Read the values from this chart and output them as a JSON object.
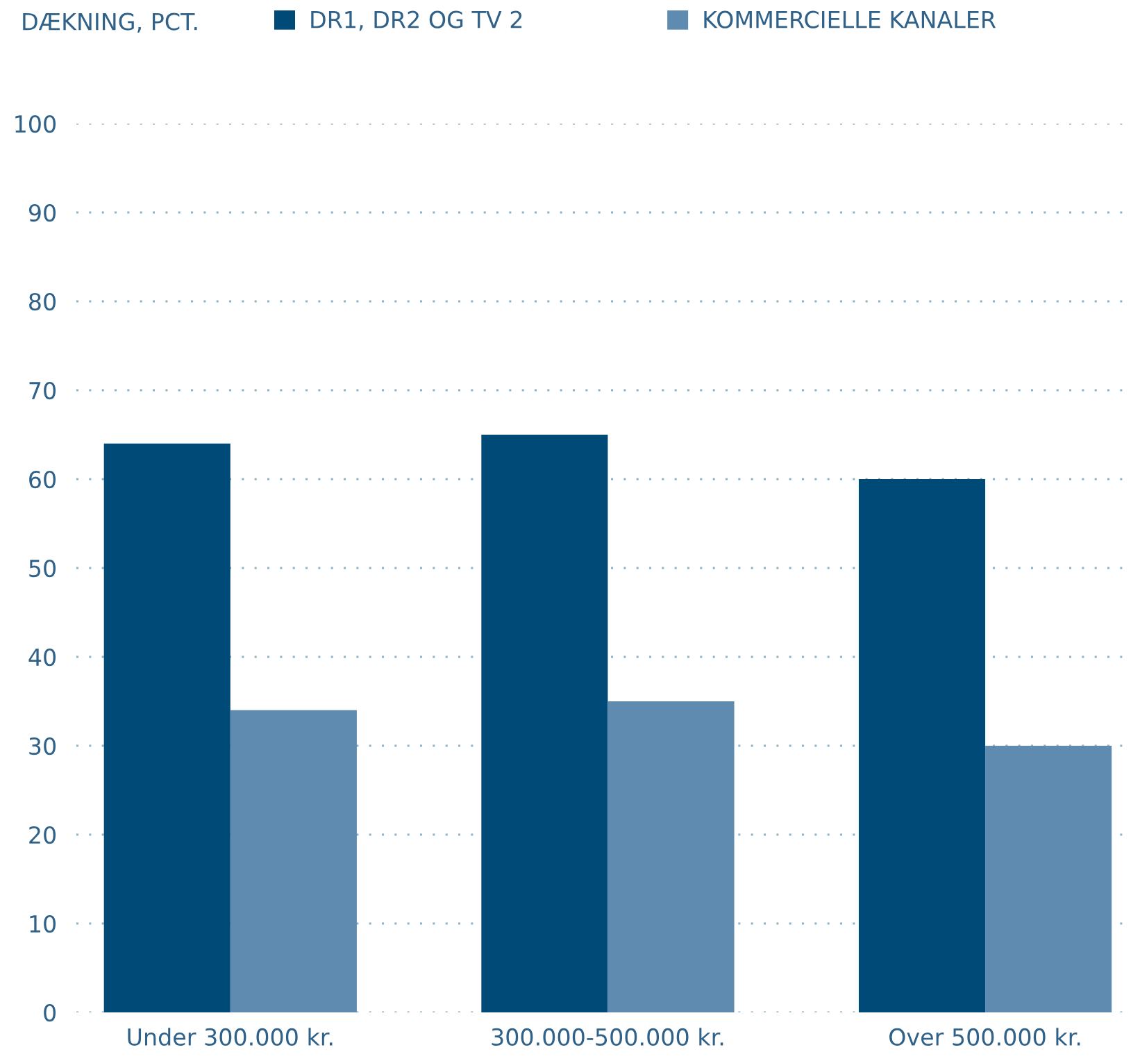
{
  "chart_data": {
    "type": "bar",
    "ylabel": "DÆKNING, PCT.",
    "categories": [
      "Under 300.000 kr.",
      "300.000-500.000 kr.",
      "Over 500.000 kr."
    ],
    "series": [
      {
        "name": "DR1, DR2 OG TV 2",
        "color": "#004a77",
        "values": [
          64,
          65,
          60
        ]
      },
      {
        "name": "KOMMERCIELLE KANALER",
        "color": "#5f8bb1",
        "values": [
          34,
          35,
          30
        ]
      }
    ],
    "ylim": [
      0,
      100
    ],
    "yticks": [
      0,
      10,
      20,
      30,
      40,
      50,
      60,
      70,
      80,
      90,
      100
    ],
    "grid": "y",
    "legend": "top"
  }
}
